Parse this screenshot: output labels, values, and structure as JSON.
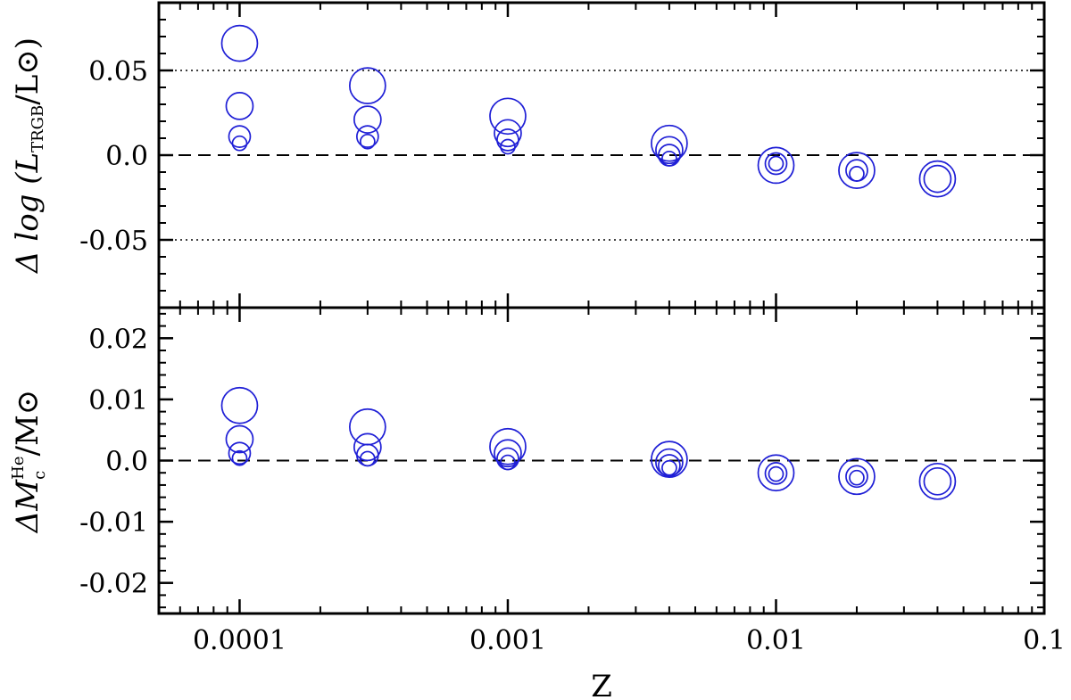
{
  "chart_data": {
    "type": "scatter",
    "xscale": "log",
    "xlim": [
      5e-05,
      0.1
    ],
    "x_ticks": [
      0.0001,
      0.001,
      0.01,
      0.1
    ],
    "x_tick_labels": [
      "0.0001",
      "0.001",
      "0.01",
      "0.1"
    ],
    "xlabel": "Z",
    "marker_color": "#1f1fd6",
    "panels": [
      {
        "ylabel_text": "Δ log (L",
        "ylabel_sub": "TRGB",
        "ylabel_tail": "/L⊙)",
        "ylim": [
          -0.09,
          0.09
        ],
        "y_ticks": [
          -0.05,
          0.0,
          0.05
        ],
        "y_tick_labels": [
          "-0.05",
          "0.0",
          "0.05"
        ],
        "dashed_reference": 0.0,
        "dotted_references": [
          -0.05,
          0.05
        ],
        "points": [
          {
            "x": 0.0001,
            "y": 0.066,
            "size": 3
          },
          {
            "x": 0.0001,
            "y": 0.029,
            "size": 2
          },
          {
            "x": 0.0001,
            "y": 0.011,
            "size": 1
          },
          {
            "x": 0.0001,
            "y": 0.007,
            "size": 0
          },
          {
            "x": 0.0003,
            "y": 0.041,
            "size": 3
          },
          {
            "x": 0.0003,
            "y": 0.021,
            "size": 2
          },
          {
            "x": 0.0003,
            "y": 0.011,
            "size": 1
          },
          {
            "x": 0.0003,
            "y": 0.008,
            "size": 0
          },
          {
            "x": 0.001,
            "y": 0.023,
            "size": 3
          },
          {
            "x": 0.001,
            "y": 0.013,
            "size": 2
          },
          {
            "x": 0.001,
            "y": 0.009,
            "size": 1
          },
          {
            "x": 0.001,
            "y": 0.005,
            "size": 0
          },
          {
            "x": 0.004,
            "y": 0.007,
            "size": 3
          },
          {
            "x": 0.004,
            "y": 0.003,
            "size": 2
          },
          {
            "x": 0.004,
            "y": 0.0,
            "size": 1
          },
          {
            "x": 0.004,
            "y": -0.002,
            "size": 0
          },
          {
            "x": 0.01,
            "y": -0.006,
            "size": 3
          },
          {
            "x": 0.01,
            "y": -0.005,
            "size": 1
          },
          {
            "x": 0.01,
            "y": -0.005,
            "size": 0
          },
          {
            "x": 0.02,
            "y": -0.009,
            "size": 3
          },
          {
            "x": 0.02,
            "y": -0.009,
            "size": 1
          },
          {
            "x": 0.02,
            "y": -0.011,
            "size": 0
          },
          {
            "x": 0.04,
            "y": -0.014,
            "size": 3
          },
          {
            "x": 0.04,
            "y": -0.014,
            "size": 2
          }
        ]
      },
      {
        "ylabel_text": "ΔM",
        "ylabel_sub": "c",
        "ylabel_sup": "He",
        "ylabel_tail": "/M⊙",
        "ylim": [
          -0.025,
          0.025
        ],
        "y_ticks": [
          -0.02,
          -0.01,
          0.0,
          0.01,
          0.02
        ],
        "y_tick_labels": [
          "-0.02",
          "-0.01",
          "0.0",
          "0.01",
          "0.02"
        ],
        "dashed_reference": 0.0,
        "dotted_references": [],
        "points": [
          {
            "x": 0.0001,
            "y": 0.009,
            "size": 3
          },
          {
            "x": 0.0001,
            "y": 0.0035,
            "size": 2
          },
          {
            "x": 0.0001,
            "y": 0.0012,
            "size": 1
          },
          {
            "x": 0.0001,
            "y": 0.0004,
            "size": 0
          },
          {
            "x": 0.0003,
            "y": 0.0055,
            "size": 3
          },
          {
            "x": 0.0003,
            "y": 0.0022,
            "size": 2
          },
          {
            "x": 0.0003,
            "y": 0.0009,
            "size": 1
          },
          {
            "x": 0.0003,
            "y": 0.0003,
            "size": 0
          },
          {
            "x": 0.001,
            "y": 0.0023,
            "size": 3
          },
          {
            "x": 0.001,
            "y": 0.0012,
            "size": 2
          },
          {
            "x": 0.001,
            "y": 0.0003,
            "size": 1
          },
          {
            "x": 0.001,
            "y": -0.0003,
            "size": 0
          },
          {
            "x": 0.004,
            "y": 0.0002,
            "size": 3
          },
          {
            "x": 0.004,
            "y": -0.0003,
            "size": 2
          },
          {
            "x": 0.004,
            "y": -0.0008,
            "size": 1
          },
          {
            "x": 0.004,
            "y": -0.0012,
            "size": 0
          },
          {
            "x": 0.01,
            "y": -0.002,
            "size": 3
          },
          {
            "x": 0.01,
            "y": -0.0021,
            "size": 1
          },
          {
            "x": 0.01,
            "y": -0.0022,
            "size": 0
          },
          {
            "x": 0.02,
            "y": -0.0026,
            "size": 3
          },
          {
            "x": 0.02,
            "y": -0.0026,
            "size": 1
          },
          {
            "x": 0.02,
            "y": -0.0028,
            "size": 0
          },
          {
            "x": 0.04,
            "y": -0.0034,
            "size": 3
          },
          {
            "x": 0.04,
            "y": -0.0034,
            "size": 2
          }
        ]
      }
    ]
  }
}
